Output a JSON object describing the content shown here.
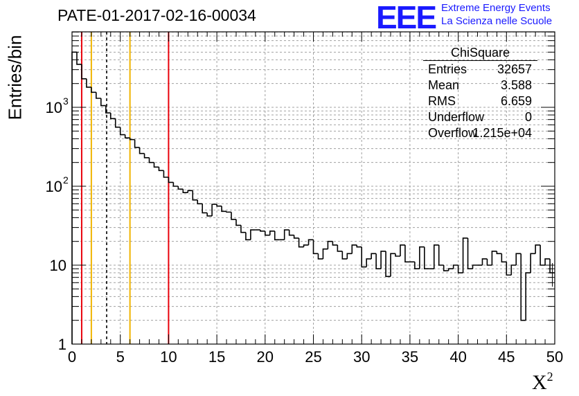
{
  "header": {
    "run_title": "PATE-01-2017-02-16-00034",
    "logo_text": "EEE",
    "logo_line1": "Extreme Energy Events",
    "logo_line2": "La Scienza nelle Scuole"
  },
  "stats_box": {
    "title": "ChiSquare",
    "rows": [
      {
        "key": "Entries",
        "value": "32657"
      },
      {
        "key": "Mean",
        "value": "3.588"
      },
      {
        "key": "RMS",
        "value": "6.659"
      },
      {
        "key": "Underflow",
        "value": "0"
      },
      {
        "key": "Overflow",
        "value": "1.215e+04"
      }
    ]
  },
  "colors": {
    "histogram": "#000000",
    "red_lines": "#e8000b",
    "yellow_lines": "#f0b400",
    "grid": "#a0a0a0",
    "logo": "#1a1aff"
  },
  "chart_data": {
    "type": "histogram",
    "ylabel": "Entries/bin",
    "xlabel": "X",
    "xlabel_sup": "2",
    "xlim": [
      0,
      50
    ],
    "ylim": [
      1,
      9000
    ],
    "yscale": "log",
    "grid": true,
    "bin_width": 0.5,
    "x_ticks": [
      0,
      5,
      10,
      15,
      20,
      25,
      30,
      35,
      40,
      45,
      50
    ],
    "x_tick_labels": [
      "0",
      "5",
      "10",
      "15",
      "20",
      "25",
      "30",
      "35",
      "40",
      "45",
      "50"
    ],
    "y_ticks": [
      1,
      10,
      100,
      1000
    ],
    "y_tick_labels": [
      {
        "base": "1",
        "exp": ""
      },
      {
        "base": "10",
        "exp": ""
      },
      {
        "base": "10",
        "exp": "2"
      },
      {
        "base": "10",
        "exp": "3"
      }
    ],
    "values": [
      5000,
      3500,
      2300,
      1800,
      1550,
      1300,
      1050,
      850,
      720,
      560,
      450,
      410,
      390,
      310,
      260,
      230,
      200,
      175,
      158,
      130,
      112,
      100,
      92,
      83,
      88,
      67,
      60,
      46,
      42,
      59,
      56,
      48,
      47,
      38,
      32,
      26,
      21,
      28,
      28,
      27,
      24,
      27,
      21,
      21,
      28,
      24,
      22,
      17,
      18,
      21,
      14,
      12,
      16,
      20,
      18,
      15,
      12,
      14,
      18,
      17,
      9.5,
      12,
      14,
      9,
      15,
      7.2,
      14,
      13,
      18,
      11,
      11,
      9,
      17,
      9,
      9,
      18,
      10,
      8.5,
      9,
      10,
      8,
      22,
      9,
      10,
      10,
      12,
      10,
      15,
      14,
      11,
      7.5,
      10,
      14,
      2,
      8,
      14,
      18,
      10,
      12,
      8
    ],
    "vertical_lines": [
      {
        "x": 1,
        "style": "red"
      },
      {
        "x": 2,
        "style": "yellow"
      },
      {
        "x": 3.588,
        "style": "black-dashed"
      },
      {
        "x": 6,
        "style": "yellow"
      },
      {
        "x": 10,
        "style": "red"
      }
    ]
  }
}
